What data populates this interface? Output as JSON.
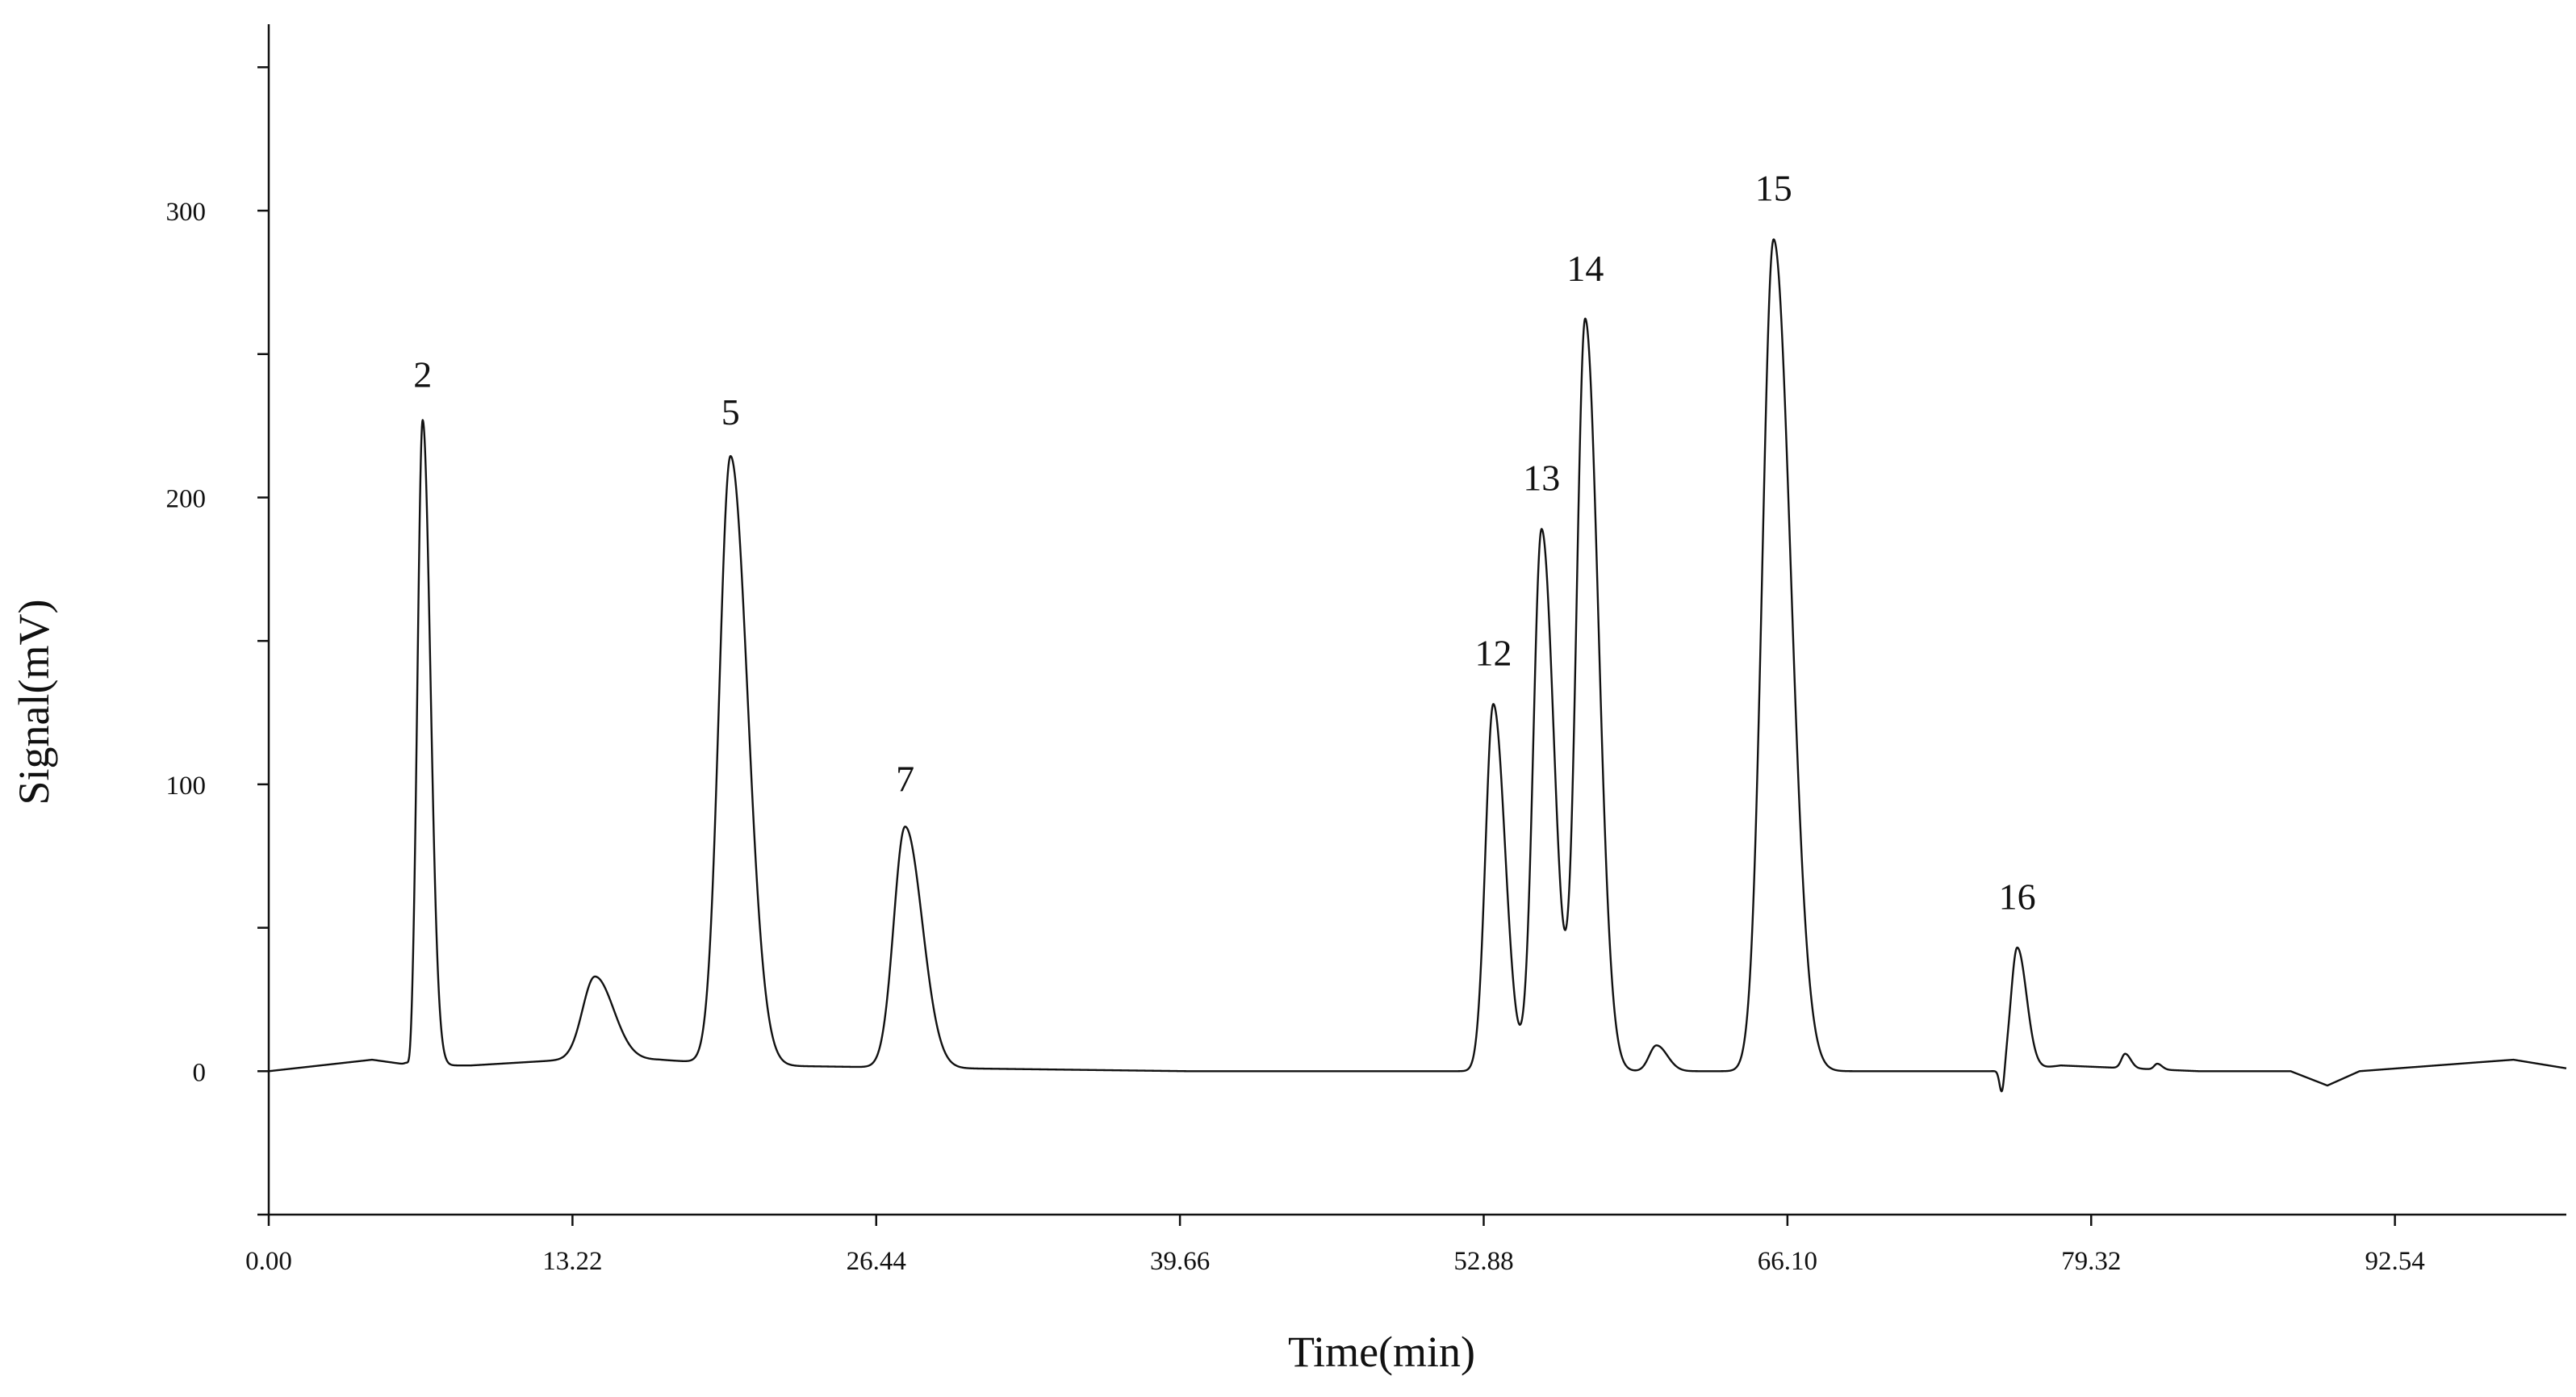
{
  "chart_data": {
    "type": "line",
    "title": "",
    "xlabel": "Time(min)",
    "ylabel": "Signal(mV)",
    "xlim": [
      0,
      100
    ],
    "ylim": [
      -50,
      365
    ],
    "x_ticks": [
      0,
      13.22,
      26.44,
      39.66,
      52.88,
      66.1,
      79.32,
      92.54
    ],
    "x_tick_labels": [
      "0.00",
      "13.22",
      "26.44",
      "39.66",
      "52.88",
      "66.10",
      "79.32",
      "92.54"
    ],
    "y_ticks": [
      0,
      100,
      200,
      300
    ],
    "y_tick_labels": [
      "0",
      "100",
      "200",
      "300"
    ],
    "y_minor_ticks": [
      -50,
      50,
      150,
      250,
      350
    ],
    "grid": false,
    "baseline": [
      [
        0,
        0
      ],
      [
        4.5,
        4
      ],
      [
        6.3,
        2
      ],
      [
        8.8,
        2
      ],
      [
        13,
        4
      ],
      [
        17,
        4
      ],
      [
        21,
        2
      ],
      [
        30,
        1
      ],
      [
        40,
        0
      ],
      [
        50,
        0
      ],
      [
        53,
        0
      ],
      [
        68,
        0
      ],
      [
        75,
        0
      ],
      [
        76,
        0
      ],
      [
        78,
        2
      ],
      [
        84,
        0
      ],
      [
        88,
        0
      ],
      [
        89.6,
        -5
      ],
      [
        91,
        0
      ],
      [
        96,
        3
      ],
      [
        97.7,
        4
      ],
      [
        100,
        1
      ]
    ],
    "peaks": [
      {
        "label": "2",
        "x": 6.7,
        "y": 225,
        "width": 0.25,
        "dip": -5
      },
      {
        "label": "",
        "x": 14.2,
        "y": 29,
        "width": 0.6
      },
      {
        "label": "5",
        "x": 20.1,
        "y": 212,
        "width": 0.55
      },
      {
        "label": "7",
        "x": 27.7,
        "y": 84,
        "width": 0.55
      },
      {
        "label": "12",
        "x": 53.3,
        "y": 128,
        "width": 0.38
      },
      {
        "label": "13",
        "x": 55.4,
        "y": 189,
        "width": 0.4
      },
      {
        "label": "14",
        "x": 57.3,
        "y": 262,
        "width": 0.42
      },
      {
        "label": "",
        "x": 60.4,
        "y": 9,
        "width": 0.35
      },
      {
        "label": "15",
        "x": 65.5,
        "y": 290,
        "width": 0.55
      },
      {
        "label": "16",
        "x": 76.1,
        "y": 43,
        "width": 0.3,
        "dip": -9
      },
      {
        "label": "",
        "x": 80.8,
        "y": 5,
        "width": 0.18
      },
      {
        "label": "",
        "x": 82.2,
        "y": 2,
        "width": 0.15
      }
    ]
  }
}
